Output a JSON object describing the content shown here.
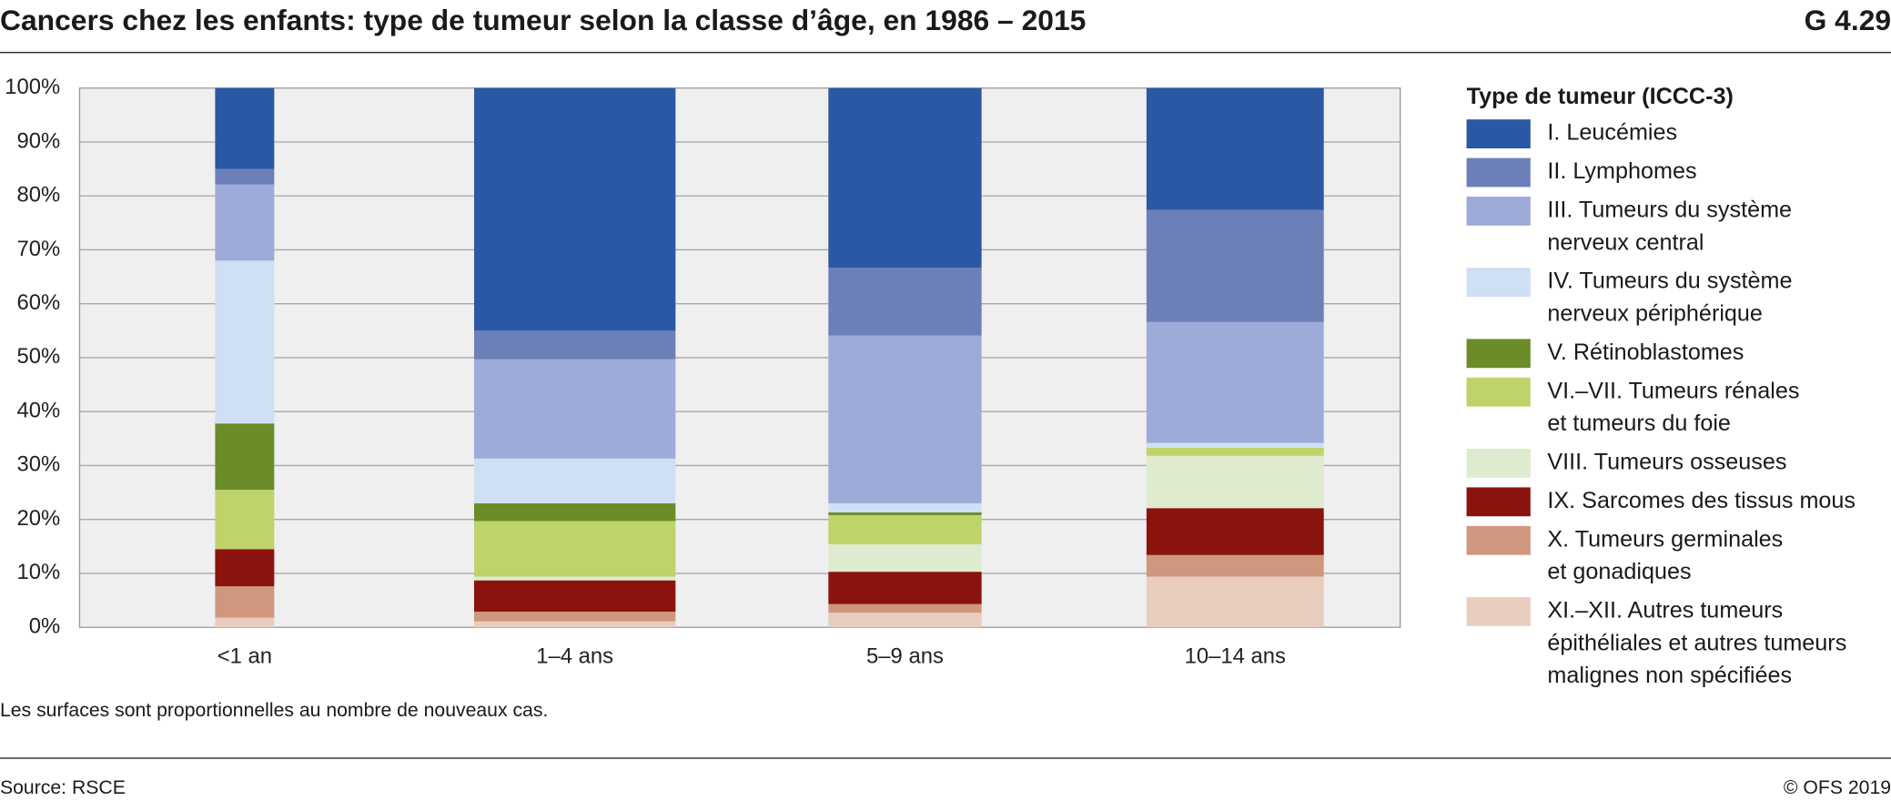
{
  "chart_data": {
    "type": "bar",
    "stacked": true,
    "title": "Cancers chez les enfants: type de tumeur selon la classe d’âge, en 1986 – 2015",
    "figure_id": "G 4.29",
    "note": "Les surfaces sont proportionnelles au nombre de nouveaux cas.",
    "source": "Source: RSCE",
    "copyright": "© OFS 2019",
    "legend_title": "Type de tumeur (ICCC-3)",
    "categories": [
      "<1 an",
      "1–4 ans",
      "5–9 ans",
      "10–14 ans"
    ],
    "widths": [
      49,
      167,
      127,
      147
    ],
    "ylim": [
      0,
      100
    ],
    "yticks": [
      {
        "value": 0,
        "label": "0%"
      },
      {
        "value": 10,
        "label": "10%"
      },
      {
        "value": 20,
        "label": "20%"
      },
      {
        "value": 30,
        "label": "30%"
      },
      {
        "value": 40,
        "label": "40%"
      },
      {
        "value": 50,
        "label": "50%"
      },
      {
        "value": 60,
        "label": "60%"
      },
      {
        "value": 70,
        "label": "70%"
      },
      {
        "value": 80,
        "label": "80%"
      },
      {
        "value": 90,
        "label": "90%"
      },
      {
        "value": 100,
        "label": "100%"
      }
    ],
    "grid": true,
    "series": [
      {
        "name": "I. Leucémies",
        "color": "#2a58a5",
        "values": [
          15.0,
          45.0,
          33.3,
          22.6
        ]
      },
      {
        "name": "II. Lymphomes",
        "color": "#6c7fb8",
        "values": [
          2.9,
          5.3,
          12.6,
          20.8
        ]
      },
      {
        "name": "III. Tumeurs du système\nnerveux central",
        "color": "#9eaad8",
        "values": [
          14.1,
          18.4,
          31.1,
          22.4
        ]
      },
      {
        "name": "IV. Tumeurs du système\nnerveux périphérique",
        "color": "#cfdff4",
        "values": [
          30.2,
          8.3,
          1.7,
          0.9
        ]
      },
      {
        "name": "V. Rétinoblastomes",
        "color": "#6a8c29",
        "values": [
          12.3,
          3.3,
          0.5,
          0
        ]
      },
      {
        "name": "VI.–VII. Tumeurs rénales\net tumeurs du foie",
        "color": "#bed46a",
        "values": [
          11.0,
          10.3,
          5.4,
          1.5
        ]
      },
      {
        "name": "VIII. Tumeurs osseuses",
        "color": "#dfebcf",
        "values": [
          0,
          0.7,
          5.1,
          9.7
        ]
      },
      {
        "name": "IX. Sarcomes des tissus mous",
        "color": "#8b130e",
        "values": [
          6.9,
          5.8,
          6.0,
          8.7
        ]
      },
      {
        "name": "X. Tumeurs germinales\net gonadiques",
        "color": "#cf977d",
        "values": [
          5.8,
          1.8,
          1.6,
          4.0
        ]
      },
      {
        "name": "XI.–XII. Autres tumeurs\népithéliales et autres tumeurs\nmalignes non spécifiées",
        "color": "#e9cdbf",
        "values": [
          1.8,
          1.1,
          2.7,
          9.4
        ]
      }
    ]
  }
}
